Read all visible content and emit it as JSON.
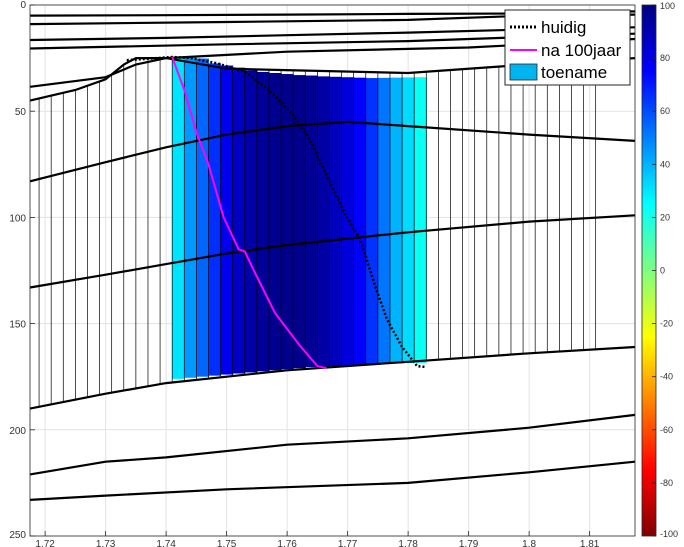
{
  "chart_data": {
    "type": "line",
    "xlim": [
      1.7175,
      1.8175
    ],
    "ylim": [
      0,
      250
    ],
    "y_reversed": true,
    "grid": true,
    "x_ticks": [
      "1.72",
      "1.73",
      "1.74",
      "1.75",
      "1.76",
      "1.77",
      "1.78",
      "1.79",
      "1.8",
      "1.81"
    ],
    "y_ticks": [
      "0",
      "50",
      "100",
      "150",
      "200",
      "250"
    ],
    "colorbar": {
      "min": -100,
      "max": 100,
      "ticks": [
        "100",
        "80",
        "60",
        "40",
        "20",
        "0",
        "-20",
        "-40",
        "-60",
        "-80",
        "-100"
      ]
    },
    "legend": {
      "placement": "top-right",
      "entries": [
        {
          "label": "huidig",
          "style": "dotted",
          "color": "#000000"
        },
        {
          "label": "na 100jaar",
          "style": "solid",
          "color": "#ff00ff"
        },
        {
          "label": "toename",
          "style": "patch",
          "color": "#00b4f0"
        }
      ]
    },
    "toename_columns": {
      "x_start": 1.741,
      "x_end": 1.783,
      "n": 21,
      "y_top": [
        24.5,
        24.8,
        25.2,
        27.5,
        28.5,
        29.5,
        30.8,
        31.5,
        32,
        32.5,
        33,
        33.2,
        33.6,
        33.8,
        34,
        34.2,
        34.4,
        34.3,
        34.2,
        34.1,
        34
      ],
      "y_bottom": [
        176,
        175.5,
        175,
        174.5,
        174,
        173.5,
        173,
        172.5,
        172,
        171.5,
        171,
        170.5,
        170.3,
        170,
        169.7,
        169.4,
        169.2,
        169,
        168.8,
        168.6,
        168.5
      ],
      "values": [
        30,
        45,
        55,
        66,
        78,
        87,
        92,
        95,
        97,
        98,
        98,
        96,
        93,
        88,
        82,
        75,
        65,
        52,
        40,
        32,
        23
      ]
    },
    "series": [
      {
        "name": "huidig",
        "x": [
          1.7335,
          1.741,
          1.744,
          1.7485,
          1.753,
          1.757,
          1.761,
          1.7635,
          1.7665,
          1.7695,
          1.772,
          1.7725,
          1.7745,
          1.7765,
          1.779,
          1.7815,
          1.783
        ],
        "y": [
          26,
          24.5,
          25,
          27.5,
          31.5,
          40,
          52,
          62,
          80,
          98,
          110,
          114,
          132,
          148,
          161,
          170,
          170.5
        ]
      },
      {
        "name": "na 100jaar",
        "x": [
          1.741,
          1.743,
          1.745,
          1.747,
          1.7495,
          1.752,
          1.753,
          1.7545,
          1.758,
          1.762,
          1.765,
          1.7665
        ],
        "y": [
          24.5,
          40,
          60,
          75,
          100,
          115,
          116,
          125,
          145,
          160,
          170,
          171
        ]
      }
    ],
    "boundaries": [
      {
        "x": [
          1.7175,
          1.74,
          1.76,
          1.78,
          1.8,
          1.8175
        ],
        "y": [
          5,
          4.8,
          4.5,
          4.2,
          4,
          3
        ]
      },
      {
        "x": [
          1.7175,
          1.75,
          1.78,
          1.8,
          1.8175
        ],
        "y": [
          9,
          8,
          7,
          5,
          4.5
        ]
      },
      {
        "x": [
          1.7175,
          1.74,
          1.76,
          1.78,
          1.8,
          1.8175
        ],
        "y": [
          16.5,
          15.5,
          14.2,
          13,
          11.5,
          10.5
        ]
      },
      {
        "x": [
          1.7175,
          1.75,
          1.78,
          1.8,
          1.8175
        ],
        "y": [
          20.5,
          18.5,
          17,
          15,
          13.5
        ]
      },
      {
        "x": [
          1.7175,
          1.73,
          1.735,
          1.74,
          1.76,
          1.79,
          1.8175
        ],
        "y": [
          38.5,
          34,
          28,
          25,
          22,
          20,
          16
        ]
      },
      {
        "x": [
          1.7175,
          1.725,
          1.73,
          1.733,
          1.735,
          1.74,
          1.75,
          1.78,
          1.8,
          1.8175
        ],
        "y": [
          45,
          40,
          35,
          28,
          25,
          25,
          30,
          32,
          28,
          25
        ]
      },
      {
        "x": [
          1.7175,
          1.73,
          1.74,
          1.75,
          1.76,
          1.77,
          1.78,
          1.8,
          1.8175
        ],
        "y": [
          83,
          74,
          67,
          61,
          57,
          55,
          57,
          61,
          64
        ]
      },
      {
        "x": [
          1.7175,
          1.73,
          1.74,
          1.75,
          1.76,
          1.77,
          1.78,
          1.8,
          1.8175
        ],
        "y": [
          133,
          127,
          122,
          117,
          113,
          110,
          107,
          102,
          99
        ]
      },
      {
        "x": [
          1.7175,
          1.73,
          1.74,
          1.76,
          1.78,
          1.8,
          1.8175
        ],
        "y": [
          190,
          183,
          178,
          172,
          168,
          164,
          161
        ]
      },
      {
        "x": [
          1.7175,
          1.73,
          1.74,
          1.76,
          1.78,
          1.8,
          1.8175
        ],
        "y": [
          221,
          215,
          213,
          207,
          204,
          199,
          193
        ]
      },
      {
        "x": [
          1.7175,
          1.73,
          1.75,
          1.78,
          1.8,
          1.8175
        ],
        "y": [
          233,
          231,
          228,
          225,
          220,
          215
        ]
      }
    ]
  }
}
